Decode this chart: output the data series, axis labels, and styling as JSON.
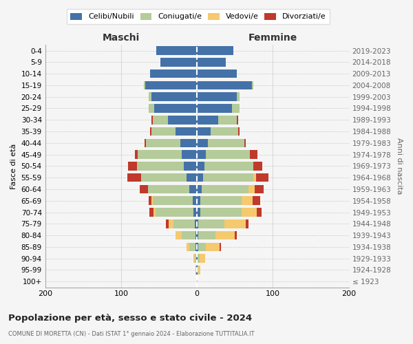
{
  "age_groups": [
    "100+",
    "95-99",
    "90-94",
    "85-89",
    "80-84",
    "75-79",
    "70-74",
    "65-69",
    "60-64",
    "55-59",
    "50-54",
    "45-49",
    "40-44",
    "35-39",
    "30-34",
    "25-29",
    "20-24",
    "15-19",
    "10-14",
    "5-9",
    "0-4"
  ],
  "birth_years": [
    "≤ 1923",
    "1924-1928",
    "1929-1933",
    "1934-1938",
    "1939-1943",
    "1944-1948",
    "1949-1953",
    "1954-1958",
    "1959-1963",
    "1964-1968",
    "1969-1973",
    "1974-1978",
    "1979-1983",
    "1984-1988",
    "1989-1993",
    "1994-1998",
    "1999-2003",
    "2004-2008",
    "2009-2013",
    "2014-2018",
    "2019-2023"
  ],
  "maschi_celibi": [
    0,
    1,
    1,
    2,
    2,
    3,
    5,
    6,
    10,
    14,
    17,
    20,
    22,
    28,
    38,
    56,
    60,
    68,
    62,
    48,
    54
  ],
  "maschi_coniugati": [
    0,
    1,
    2,
    8,
    18,
    28,
    50,
    52,
    55,
    60,
    62,
    58,
    45,
    32,
    20,
    8,
    4,
    2,
    0,
    0,
    0
  ],
  "maschi_vedovi": [
    0,
    0,
    2,
    4,
    8,
    6,
    2,
    2,
    0,
    0,
    0,
    0,
    0,
    0,
    0,
    0,
    0,
    0,
    0,
    0,
    0
  ],
  "maschi_divorziati": [
    0,
    0,
    0,
    0,
    0,
    4,
    6,
    4,
    10,
    18,
    12,
    4,
    2,
    2,
    2,
    0,
    0,
    0,
    0,
    0,
    0
  ],
  "femmine_nubili": [
    0,
    1,
    1,
    2,
    2,
    2,
    4,
    4,
    6,
    8,
    10,
    12,
    14,
    18,
    28,
    46,
    52,
    72,
    52,
    38,
    48
  ],
  "femmine_coniugate": [
    0,
    1,
    2,
    10,
    22,
    34,
    55,
    55,
    62,
    66,
    64,
    58,
    48,
    36,
    24,
    10,
    4,
    2,
    0,
    0,
    0
  ],
  "femmine_vedove": [
    1,
    2,
    8,
    18,
    26,
    28,
    20,
    14,
    8,
    4,
    0,
    0,
    0,
    0,
    0,
    0,
    0,
    0,
    0,
    0,
    0
  ],
  "femmine_divorziate": [
    0,
    0,
    0,
    2,
    2,
    4,
    6,
    10,
    12,
    16,
    12,
    10,
    2,
    2,
    2,
    0,
    0,
    0,
    0,
    0,
    0
  ],
  "color_celibi": "#4472a8",
  "color_coniugati": "#b5cb9a",
  "color_vedovi": "#f5c96e",
  "color_divorziati": "#c0392b",
  "legend_labels": [
    "Celibi/Nubili",
    "Coniugati/e",
    "Vedovi/e",
    "Divorziati/e"
  ],
  "label_maschi": "Maschi",
  "label_femmine": "Femmine",
  "ylabel_left": "Fasce di età",
  "ylabel_right": "Anni di nascita",
  "title": "Popolazione per età, sesso e stato civile - 2024",
  "subtitle": "COMUNE DI MORETTA (CN) - Dati ISTAT 1° gennaio 2024 - Elaborazione TUTTITALIA.IT",
  "bg_color": "#f5f5f5",
  "grid_color": "#cccccc",
  "xticks": [
    -200,
    -100,
    0,
    100,
    200
  ],
  "xticklabels": [
    "200",
    "100",
    "0",
    "100",
    "200"
  ]
}
